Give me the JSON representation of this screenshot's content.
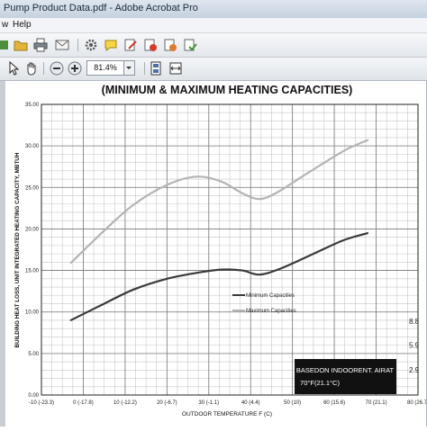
{
  "window": {
    "title": "Pump Product Data.pdf - Adobe Acrobat Pro"
  },
  "menu": {
    "items": [
      "w",
      "Help"
    ]
  },
  "toolbar": {
    "zoom": "81.4%"
  },
  "chart_data": {
    "type": "line",
    "title": "(MINIMUM & MAXIMUM HEATING CAPACITIES)",
    "xlabel": "OUTDOOR TEMPERATURE  F (C)",
    "ylabel": "BUILDING HEAT LOSS, UNIT INTEGRATED HEATING CAPACITY, MBTUH",
    "xlim": [
      -10,
      80
    ],
    "ylim": [
      0,
      35
    ],
    "grid": true,
    "x_ticks": [
      {
        "v": -10,
        "label": "-10 (-23.3)"
      },
      {
        "v": 0,
        "label": "0 (-17.8)"
      },
      {
        "v": 10,
        "label": "10 (-12.2)"
      },
      {
        "v": 20,
        "label": "20 (-6.7)"
      },
      {
        "v": 30,
        "label": "30 (-1.1)"
      },
      {
        "v": 40,
        "label": "40 (4.4)"
      },
      {
        "v": 50,
        "label": "50 (10)"
      },
      {
        "v": 60,
        "label": "60 (15.6)"
      },
      {
        "v": 70,
        "label": "70 (21.1)"
      },
      {
        "v": 80,
        "label": "80 (26.7)"
      }
    ],
    "y_ticks": [
      "0.00",
      "5.00",
      "10.00",
      "15.00",
      "20.00",
      "25.00",
      "30.00",
      "35.00"
    ],
    "right_ticks": [
      {
        "v": 2.9,
        "label": "2.9"
      },
      {
        "v": 5.9,
        "label": "5.9"
      },
      {
        "v": 8.8,
        "label": "8.8"
      }
    ],
    "series": [
      {
        "name": "Minimum Capacities",
        "color": "#3a3a3a",
        "x": [
          -3,
          5,
          12,
          20,
          27,
          33,
          38,
          42,
          47,
          55,
          62,
          68
        ],
        "y": [
          9.0,
          11.0,
          12.7,
          14.0,
          14.7,
          15.1,
          15.0,
          14.5,
          15.2,
          17.0,
          18.6,
          19.5
        ]
      },
      {
        "name": "Maximum Capacities",
        "color": "#b4b4b4",
        "x": [
          -3,
          5,
          12,
          20,
          27,
          33,
          38,
          42,
          46,
          52,
          58,
          63,
          68
        ],
        "y": [
          15.9,
          19.8,
          22.9,
          25.3,
          26.3,
          25.7,
          24.3,
          23.6,
          24.3,
          26.2,
          28.1,
          29.6,
          30.7
        ]
      }
    ],
    "annotation": {
      "line1": "BASEDON INDOORENT. AIRAT",
      "line2": "70°F(21.1°C)"
    }
  }
}
